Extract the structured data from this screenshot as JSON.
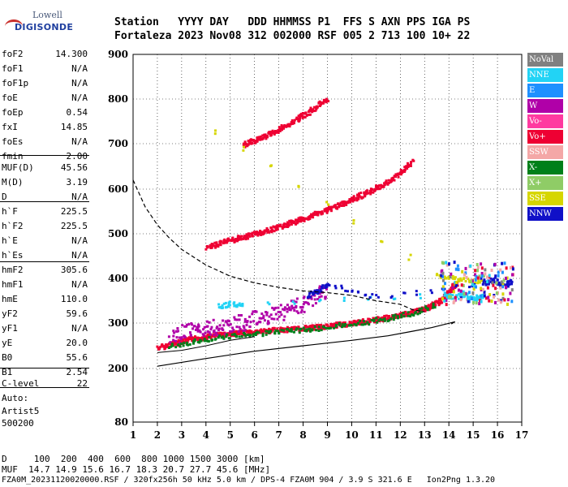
{
  "logo": {
    "brand_top": "Lowell",
    "brand_bottom": "DIGISONDE"
  },
  "header": {
    "labels": "Station   YYYY DAY   DDD HHMMSS P1  FFS S AXN PPS IGA PS",
    "values": "Fortaleza 2023 Nov08 312 002000 RSF 005 2 713 100 10+ 22"
  },
  "params": [
    {
      "label": "foF2",
      "value": "14.300"
    },
    {
      "label": "foF1",
      "value": "N/A"
    },
    {
      "label": "foF1p",
      "value": "N/A"
    },
    {
      "label": "foE",
      "value": "N/A"
    },
    {
      "label": "foEp",
      "value": "0.54"
    },
    {
      "label": "fxI",
      "value": "14.85"
    },
    {
      "label": "foEs",
      "value": "N/A"
    },
    {
      "label": "fmin",
      "value": "2.00"
    },
    {
      "label": "MUF(D)",
      "value": "45.56"
    },
    {
      "label": "M(D)",
      "value": "3.19"
    },
    {
      "label": "D",
      "value": "N/A"
    },
    {
      "label": "h`F",
      "value": "225.5"
    },
    {
      "label": "h`F2",
      "value": "225.5"
    },
    {
      "label": "h`E",
      "value": "N/A"
    },
    {
      "label": "h`Es",
      "value": "N/A"
    },
    {
      "label": "hmF2",
      "value": "305.6"
    },
    {
      "label": "hmF1",
      "value": "N/A"
    },
    {
      "label": "hmE",
      "value": "110.0"
    },
    {
      "label": "yF2",
      "value": "59.6"
    },
    {
      "label": "yF1",
      "value": "N/A"
    },
    {
      "label": "yE",
      "value": "20.0"
    },
    {
      "label": "B0",
      "value": "55.6"
    },
    {
      "label": "B1",
      "value": "2.54"
    },
    {
      "label": "C-level",
      "value": "22"
    }
  ],
  "auto": {
    "line1": "Auto:",
    "line2": "Artist5",
    "line3": "500200"
  },
  "legend": [
    {
      "label": "NoVal",
      "color": "#808080"
    },
    {
      "label": "NNE",
      "color": "#22d3f5"
    },
    {
      "label": "E",
      "color": "#1e90ff"
    },
    {
      "label": "W",
      "color": "#b000a8"
    },
    {
      "label": "Vo-",
      "color": "#ff3aa0"
    },
    {
      "label": "Vo+",
      "color": "#ee0033"
    },
    {
      "label": "SSW",
      "color": "#f4a7a7"
    },
    {
      "label": "X-",
      "color": "#00801a"
    },
    {
      "label": "X+",
      "color": "#8fcc66"
    },
    {
      "label": "SSE",
      "color": "#d6d600"
    },
    {
      "label": "NNW",
      "color": "#1010c8"
    }
  ],
  "footer": {
    "line1": "D     100  200  400  600  800 1000 1500 3000 [km]",
    "line2": "MUF  14.7 14.9 15.6 16.7 18.3 20.7 27.7 45.6 [MHz]",
    "line3": "FZA0M_20231120020000.RSF / 320fx256h 50 kHz 5.0 km / DPS-4 FZA0M 904 / 3.9 S 321.6 E   Ion2Png 1.3.20"
  },
  "chart_data": {
    "type": "scatter",
    "xlim": [
      1,
      17
    ],
    "ylim": [
      80,
      900
    ],
    "y_scale": "log-like",
    "x_ticks": [
      "1",
      "2",
      "3",
      "4",
      "5",
      "6",
      "7",
      "8",
      "9",
      "10",
      "11",
      "12",
      "13",
      "14",
      "15",
      "16",
      "17"
    ],
    "y_ticks": [
      "80",
      "200",
      "300",
      "400",
      "500",
      "600",
      "700",
      "800",
      "900"
    ],
    "grid": true,
    "legend_position": "right",
    "series": [
      {
        "name": "Vo+",
        "color": "#ee0033",
        "points": [
          [
            2.0,
            248
          ],
          [
            2.5,
            255
          ],
          [
            3.0,
            262
          ],
          [
            3.5,
            268
          ],
          [
            4.0,
            272
          ],
          [
            4.5,
            276
          ],
          [
            5.0,
            279
          ],
          [
            5.5,
            281
          ],
          [
            6.0,
            283
          ],
          [
            6.5,
            285
          ],
          [
            7.0,
            287
          ],
          [
            7.5,
            289
          ],
          [
            8.0,
            291
          ],
          [
            8.5,
            293
          ],
          [
            9.0,
            296
          ],
          [
            9.5,
            299
          ],
          [
            10.0,
            302
          ],
          [
            10.5,
            306
          ],
          [
            11.0,
            310
          ],
          [
            11.5,
            315
          ],
          [
            12.0,
            320
          ],
          [
            12.5,
            327
          ],
          [
            13.0,
            335
          ],
          [
            13.3,
            342
          ],
          [
            13.6,
            352
          ],
          [
            13.9,
            365
          ],
          [
            14.1,
            380
          ],
          [
            14.3,
            395
          ]
        ]
      },
      {
        "name": "Vo+ (2F)",
        "color": "#ee0033",
        "points": [
          [
            4.0,
            472
          ],
          [
            4.5,
            480
          ],
          [
            5.0,
            488
          ],
          [
            5.5,
            495
          ],
          [
            6.0,
            502
          ],
          [
            6.5,
            510
          ],
          [
            7.0,
            518
          ],
          [
            7.5,
            527
          ],
          [
            8.0,
            536
          ],
          [
            8.5,
            546
          ],
          [
            9.0,
            556
          ],
          [
            9.5,
            568
          ],
          [
            10.0,
            580
          ],
          [
            10.5,
            592
          ],
          [
            11.0,
            605
          ],
          [
            11.5,
            620
          ],
          [
            12.0,
            640
          ],
          [
            12.5,
            665
          ]
        ]
      },
      {
        "name": "Vo+ (3F)",
        "color": "#ee0033",
        "points": [
          [
            5.5,
            700
          ],
          [
            6.0,
            710
          ],
          [
            6.5,
            722
          ],
          [
            7.0,
            735
          ],
          [
            7.5,
            750
          ],
          [
            8.0,
            766
          ],
          [
            8.5,
            784
          ],
          [
            9.0,
            805
          ]
        ]
      },
      {
        "name": "W",
        "color": "#b000a8",
        "points": [
          [
            2.5,
            275
          ],
          [
            3.0,
            280
          ],
          [
            3.5,
            285
          ],
          [
            4.0,
            290
          ],
          [
            4.5,
            295
          ],
          [
            5.0,
            300
          ],
          [
            5.5,
            305
          ],
          [
            6.0,
            312
          ],
          [
            6.5,
            318
          ],
          [
            7.0,
            325
          ],
          [
            7.5,
            335
          ],
          [
            8.0,
            345
          ],
          [
            8.5,
            360
          ],
          [
            9.0,
            375
          ]
        ]
      },
      {
        "name": "X-",
        "color": "#00801a",
        "points": [
          [
            2.5,
            250
          ],
          [
            3.5,
            262
          ],
          [
            4.5,
            270
          ],
          [
            5.5,
            276
          ],
          [
            6.5,
            281
          ],
          [
            7.5,
            286
          ],
          [
            8.5,
            290
          ],
          [
            9.5,
            297
          ],
          [
            10.5,
            304
          ],
          [
            11.5,
            313
          ],
          [
            12.5,
            325
          ],
          [
            13.5,
            345
          ]
        ]
      },
      {
        "name": "NNE",
        "color": "#22d3f5",
        "points": [
          [
            4.5,
            340
          ],
          [
            5.0,
            345
          ],
          [
            5.5,
            342
          ],
          [
            13.8,
            365
          ],
          [
            14.2,
            360
          ],
          [
            14.6,
            368
          ],
          [
            15.0,
            355
          ],
          [
            15.4,
            362
          ]
        ]
      },
      {
        "name": "NNW",
        "color": "#1010c8",
        "points": [
          [
            8.2,
            365
          ],
          [
            8.6,
            375
          ],
          [
            9.0,
            390
          ],
          [
            11.0,
            360
          ],
          [
            15.4,
            390
          ],
          [
            15.8,
            400
          ],
          [
            16.2,
            385
          ],
          [
            16.6,
            395
          ]
        ]
      },
      {
        "name": "SSE",
        "color": "#d6d600",
        "points": [
          [
            4.4,
            730
          ],
          [
            13.5,
            410
          ],
          [
            14.5,
            400
          ],
          [
            15.5,
            395
          ]
        ]
      }
    ],
    "profile_solid": [
      [
        2.0,
        205
      ],
      [
        4.0,
        222
      ],
      [
        6.0,
        238
      ],
      [
        8.0,
        250
      ],
      [
        10.0,
        262
      ],
      [
        11.5,
        272
      ],
      [
        12.5,
        282
      ],
      [
        13.3,
        290
      ],
      [
        13.9,
        298
      ],
      [
        14.25,
        303
      ],
      [
        14.1,
        298
      ]
    ],
    "profile_dashed": [
      [
        1.0,
        620
      ],
      [
        1.5,
        560
      ],
      [
        2.0,
        520
      ],
      [
        2.5,
        490
      ],
      [
        3.0,
        465
      ],
      [
        4.0,
        430
      ],
      [
        5.0,
        405
      ],
      [
        6.0,
        390
      ],
      [
        7.0,
        380
      ],
      [
        8.0,
        372
      ],
      [
        9.0,
        368
      ],
      [
        10.0,
        362
      ],
      [
        11.0,
        350
      ],
      [
        12.0,
        342
      ],
      [
        12.5,
        330
      ],
      [
        13.0,
        325
      ]
    ],
    "profile_lower_solid": [
      [
        2.0,
        235
      ],
      [
        3.0,
        240
      ],
      [
        4.0,
        250
      ],
      [
        5.0,
        262
      ],
      [
        6.0,
        270
      ]
    ]
  }
}
